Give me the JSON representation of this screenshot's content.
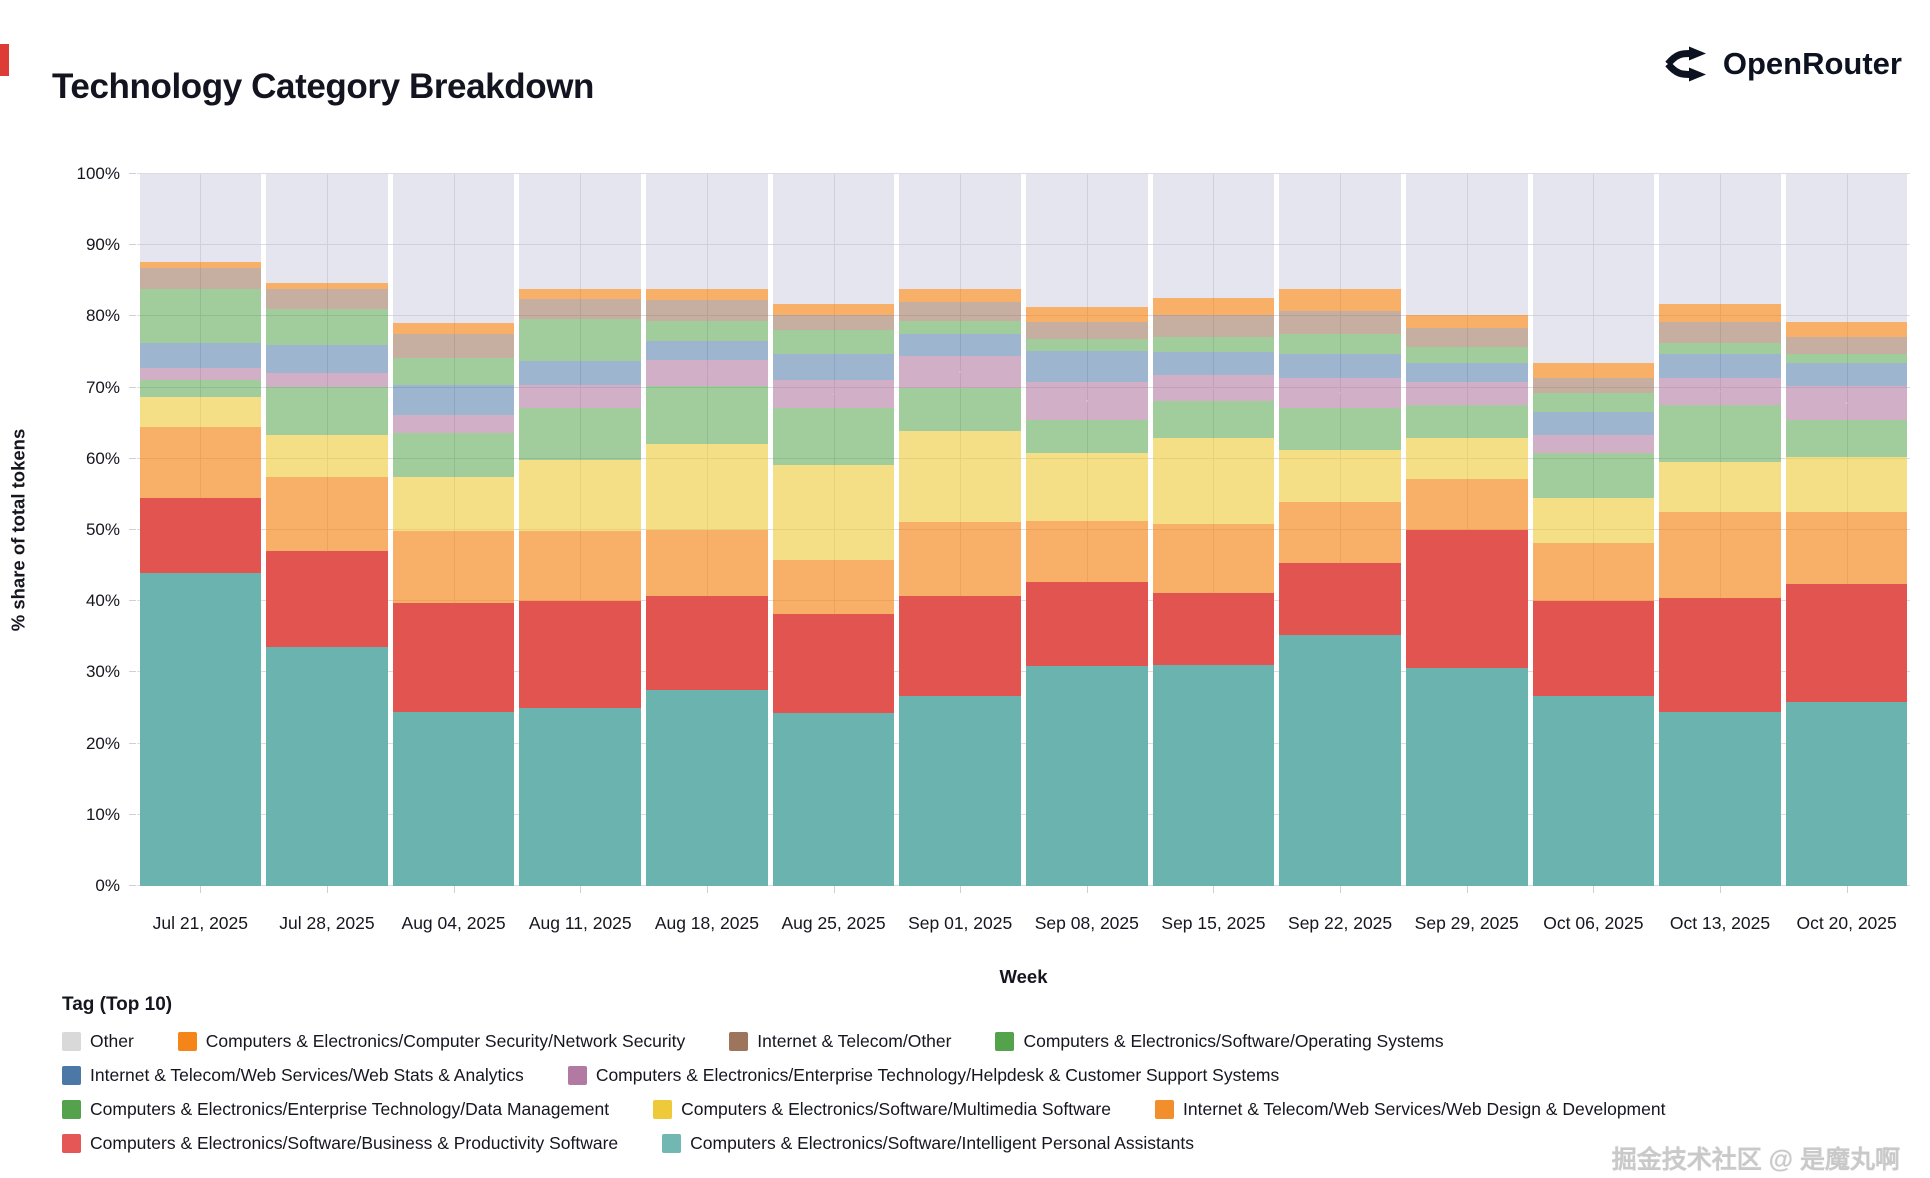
{
  "header": {
    "title": "Technology Category Breakdown",
    "brand": "OpenRouter"
  },
  "watermark": "掘金技术社区 @ 是魔丸啊",
  "chart_data": {
    "type": "bar",
    "variant": "100%-stacked-vertical",
    "title": "Technology Category Breakdown",
    "xlabel": "Week",
    "ylabel": "% share of total tokens",
    "ylim": [
      0,
      100
    ],
    "grid": true,
    "legend_title": "Tag (Top 10)",
    "legend_position": "bottom-left",
    "y_ticks": [
      "0%",
      "10%",
      "20%",
      "30%",
      "40%",
      "50%",
      "60%",
      "70%",
      "80%",
      "90%",
      "100%"
    ],
    "categories": [
      "Jul 21, 2025",
      "Jul 28, 2025",
      "Aug 04, 2025",
      "Aug 11, 2025",
      "Aug 18, 2025",
      "Aug 25, 2025",
      "Sep 01, 2025",
      "Sep 08, 2025",
      "Sep 15, 2025",
      "Sep 22, 2025",
      "Sep 29, 2025",
      "Oct 06, 2025",
      "Oct 13, 2025",
      "Oct 20, 2025"
    ],
    "series_note": "series listed bottom-to-top of stack; values are % share of total tokens",
    "series": [
      {
        "name": "Computers & Electronics/Software/Intelligent Personal Assistants",
        "color": "#72b7b2",
        "fill": "#6bb3ae",
        "texture": false,
        "values": [
          44.0,
          33.5,
          24.5,
          25.0,
          27.5,
          24.3,
          26.7,
          30.9,
          31.0,
          35.3,
          30.6,
          26.7,
          24.5,
          25.8
        ]
      },
      {
        "name": "Computers & Electronics/Software/Business & Productivity Software",
        "color": "#e45756",
        "fill": "#e25450",
        "texture": false,
        "values": [
          10.5,
          13.6,
          15.2,
          15.0,
          13.3,
          13.9,
          14.1,
          11.8,
          10.1,
          10.0,
          19.4,
          13.4,
          16.0,
          16.6
        ]
      },
      {
        "name": "Internet & Telecom/Web Services/Web Design & Development",
        "color": "#f28e2b",
        "fill": "rgba(245,133,24,0.66)",
        "texture": false,
        "values": [
          10.0,
          10.3,
          10.2,
          9.9,
          9.2,
          7.6,
          10.3,
          8.6,
          9.7,
          8.7,
          7.1,
          8.1,
          12.0,
          10.2
        ]
      },
      {
        "name": "Computers & Electronics/Software/Multimedia Software",
        "color": "#eeca3b",
        "fill": "rgba(238,202,59,0.62)",
        "texture": false,
        "values": [
          4.2,
          6.0,
          7.6,
          10.0,
          12.1,
          13.4,
          12.8,
          9.5,
          12.1,
          7.3,
          5.8,
          6.3,
          7.0,
          7.6
        ]
      },
      {
        "name": "Computers & Electronics/Enterprise Technology/Data Management",
        "color": "#54a24b",
        "fill": "rgba(84,162,75,0.55)",
        "texture": false,
        "values": [
          2.3,
          6.7,
          6.1,
          7.3,
          8.1,
          7.9,
          6.1,
          4.7,
          5.2,
          5.8,
          4.7,
          6.3,
          8.0,
          5.3
        ]
      },
      {
        "name": "Computers & Electronics/Enterprise Technology/Helpdesk & Customer Support Systems",
        "color": "#b279a2",
        "fill": "rgba(178,121,162,0.60)",
        "texture": true,
        "values": [
          1.8,
          2.0,
          2.6,
          3.2,
          3.7,
          3.9,
          4.4,
          5.3,
          3.7,
          4.2,
          3.2,
          2.6,
          3.8,
          4.7
        ]
      },
      {
        "name": "Internet & Telecom/Web Services/Web Stats & Analytics",
        "color": "#4c78a8",
        "fill": "rgba(76,120,168,0.55)",
        "texture": false,
        "values": [
          3.5,
          3.9,
          4.2,
          3.4,
          2.6,
          3.7,
          3.2,
          4.4,
          3.2,
          3.4,
          2.6,
          3.2,
          3.4,
          3.2
        ]
      },
      {
        "name": "Computers & Electronics/Software/Operating Systems",
        "color": "#54a24b",
        "fill": "rgba(84,162,75,0.55)",
        "texture": false,
        "values": [
          7.6,
          5.0,
          3.7,
          5.8,
          2.9,
          3.4,
          1.8,
          1.6,
          2.1,
          2.9,
          2.3,
          2.6,
          1.6,
          1.3
        ]
      },
      {
        "name": "Internet & Telecom/Other",
        "color": "#9d755d",
        "fill": "rgba(157,117,93,0.58)",
        "texture": true,
        "values": [
          2.9,
          2.9,
          3.4,
          2.9,
          2.9,
          2.1,
          2.6,
          2.4,
          3.1,
          3.1,
          2.7,
          2.1,
          2.9,
          2.4
        ]
      },
      {
        "name": "Computers & Electronics/Computer Security/Network Security",
        "color": "#f58518",
        "fill": "rgba(245,133,24,0.66)",
        "texture": false,
        "values": [
          0.8,
          0.8,
          1.6,
          1.3,
          1.6,
          1.6,
          1.9,
          2.1,
          2.4,
          3.2,
          1.8,
          2.1,
          2.6,
          2.1
        ]
      },
      {
        "name": "Other",
        "color": "#d9d9d9",
        "fill": "rgba(186,186,212,0.38)",
        "texture": false,
        "values": [
          12.4,
          15.3,
          20.9,
          16.2,
          16.1,
          18.2,
          16.1,
          18.7,
          17.4,
          16.1,
          19.8,
          26.6,
          18.2,
          20.8
        ]
      }
    ],
    "legend_rows": [
      [
        10,
        9,
        8,
        7
      ],
      [
        6,
        5
      ],
      [
        4,
        3,
        2
      ],
      [
        1,
        0
      ]
    ]
  }
}
